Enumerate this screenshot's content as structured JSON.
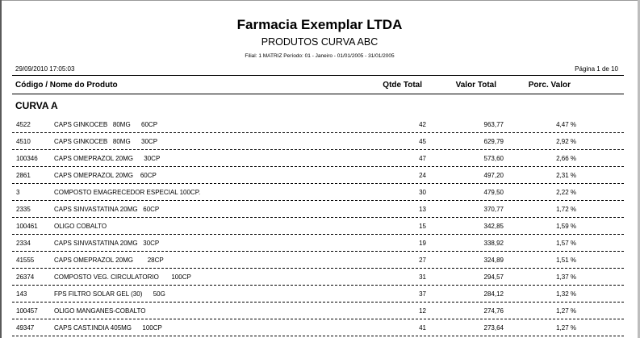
{
  "report": {
    "company": "Farmacia Exemplar LTDA",
    "title": "PRODUTOS CURVA ABC",
    "filter": "Filial: 1 MATRIZ    Período: 01 - Janeiro - 01/01/2005 - 31/01/2005",
    "datetime": "29/09/2010 17:05:03",
    "page": "Página 1 de 10"
  },
  "columns": {
    "code_name": "Código / Nome do Produto",
    "qtde": "Qtde Total",
    "valor": "Valor Total",
    "perc": "Porc. Valor"
  },
  "section_title": "CURVA A",
  "rows": [
    {
      "code": "4522",
      "name": "CAPS GINKOCEB   80MG      60CP",
      "qtde": "42",
      "valor": "963,77",
      "perc": "4,47 %"
    },
    {
      "code": "4510",
      "name": "CAPS GINKOCEB   80MG      30CP",
      "qtde": "45",
      "valor": "629,79",
      "perc": "2,92 %"
    },
    {
      "code": "100346",
      "name": "CAPS OMEPRAZOL 20MG      30CP",
      "qtde": "47",
      "valor": "573,60",
      "perc": "2,66 %"
    },
    {
      "code": "2861",
      "name": "CAPS OMEPRAZOL 20MG    60CP",
      "qtde": "24",
      "valor": "497,20",
      "perc": "2,31 %"
    },
    {
      "code": "3",
      "name": "COMPOSTO EMAGRECEDOR ESPECIAL 100CP.",
      "qtde": "30",
      "valor": "479,50",
      "perc": "2,22 %"
    },
    {
      "code": "2335",
      "name": "CAPS SINVASTATINA 20MG   60CP",
      "qtde": "13",
      "valor": "370,77",
      "perc": "1,72 %"
    },
    {
      "code": "100461",
      "name": "OLIGO COBALTO",
      "qtde": "15",
      "valor": "342,85",
      "perc": "1,59 %"
    },
    {
      "code": "2334",
      "name": "CAPS SINVASTATINA 20MG   30CP",
      "qtde": "19",
      "valor": "338,92",
      "perc": "1,57 %"
    },
    {
      "code": "41555",
      "name": "CAPS OMEPRAZOL 20MG        28CP",
      "qtde": "27",
      "valor": "324,89",
      "perc": "1,51 %"
    },
    {
      "code": "26374",
      "name": "COMPOSTO VEG. CIRCULATORIO       100CP",
      "qtde": "31",
      "valor": "294,57",
      "perc": "1,37 %"
    },
    {
      "code": "143",
      "name": "FPS FILTRO SOLAR GEL (30)      50G",
      "qtde": "37",
      "valor": "284,12",
      "perc": "1,32 %"
    },
    {
      "code": "100457",
      "name": "OLIGO MANGANES-COBALTO",
      "qtde": "12",
      "valor": "274,76",
      "perc": "1,27 %"
    },
    {
      "code": "49347",
      "name": "CAPS CAST.INDIA 405MG      100CP",
      "qtde": "41",
      "valor": "273,64",
      "perc": "1,27 %"
    }
  ]
}
